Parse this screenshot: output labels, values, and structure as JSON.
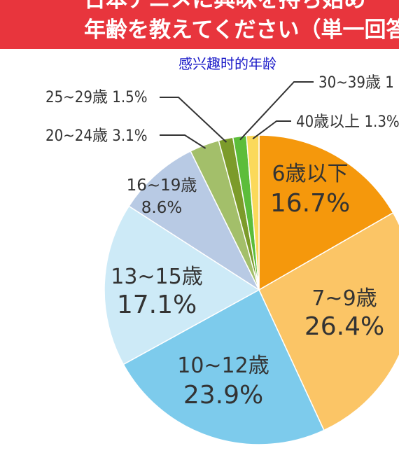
{
  "banner": {
    "line1": "日本アニメに興味を持ち始め",
    "line2": "年齢を教えてください（単一回答"
  },
  "subtitle": "感兴趣时的年龄",
  "colors": {
    "banner": "#e8353d",
    "subtitle": "#1919c8",
    "label_text": "#333333"
  },
  "chart_data": {
    "type": "pie",
    "title": "年齢を教えてください（単一回答",
    "subtitle": "感兴趣时的年龄",
    "start": "12 o'clock, clockwise",
    "slices": [
      {
        "label": "6歳以下",
        "value": 16.7,
        "display": "16.7%",
        "color": "#f5980c"
      },
      {
        "label": "7~9歳",
        "value": 26.4,
        "display": "26.4%",
        "color": "#fbc566"
      },
      {
        "label": "10~12歳",
        "value": 23.9,
        "display": "23.9%",
        "color": "#7dcbec"
      },
      {
        "label": "13~15歳",
        "value": 17.1,
        "display": "17.1%",
        "color": "#cdeaf7"
      },
      {
        "label": "16~19歳",
        "value": 8.6,
        "display": "8.6%",
        "color": "#b8cae4"
      },
      {
        "label": "20~24歳",
        "value": 3.1,
        "display": "3.1%",
        "color": "#a3bf6a"
      },
      {
        "label": "25~29歳",
        "value": 1.5,
        "display": "1.5%",
        "color": "#7c9b2a"
      },
      {
        "label": "30~39歳",
        "value": 1.4,
        "display": "1",
        "color": "#5cbd3a"
      },
      {
        "label": "40歳以上",
        "value": 1.3,
        "display": "1.3%",
        "color": "#fbd95a"
      }
    ]
  }
}
